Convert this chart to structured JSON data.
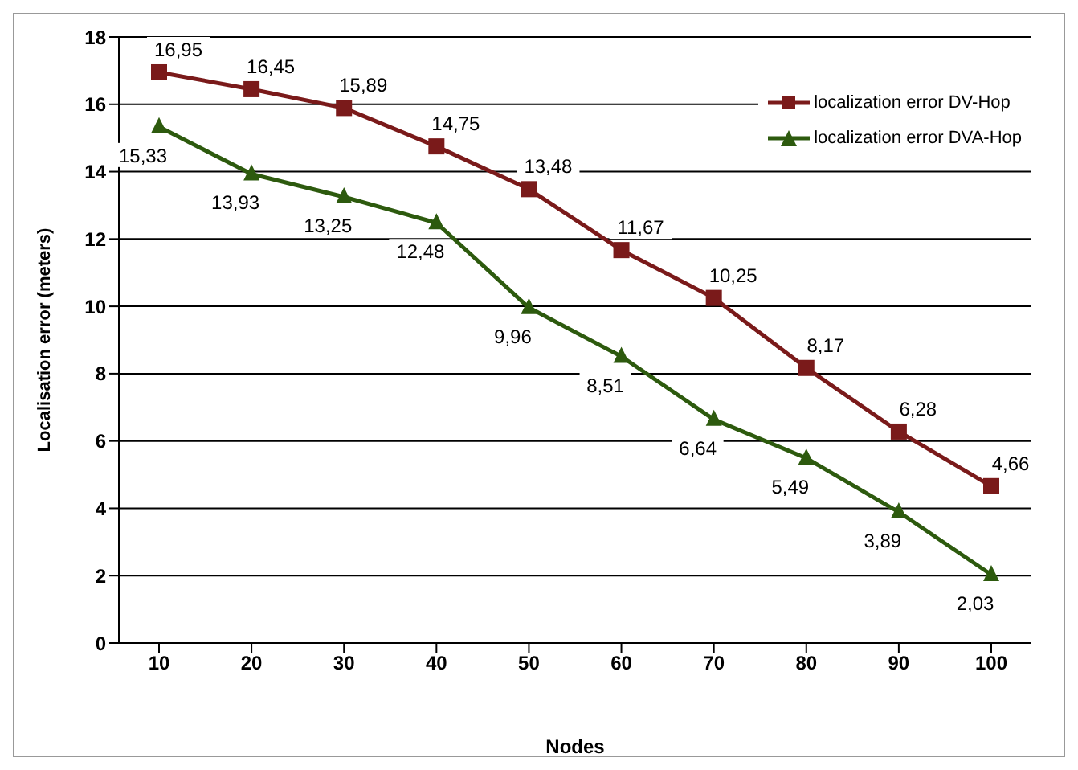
{
  "chart_data": {
    "type": "line",
    "xlabel": "Nodes",
    "ylabel": "Localisation error (meters)",
    "categories": [
      "10",
      "20",
      "30",
      "40",
      "50",
      "60",
      "70",
      "80",
      "90",
      "100"
    ],
    "ylim": [
      0,
      18
    ],
    "yticks": [
      0,
      2,
      4,
      6,
      8,
      10,
      12,
      14,
      16,
      18
    ],
    "grid": "y",
    "legend": "top right",
    "line_style": "solid",
    "series": [
      {
        "name": "localization error DV-Hop",
        "color": "#7a1a1a",
        "marker": "square",
        "values": [
          16.95,
          16.45,
          15.89,
          14.75,
          13.48,
          11.67,
          10.25,
          8.17,
          6.28,
          4.66
        ],
        "value_labels": [
          "16,95",
          "16,45",
          "15,89",
          "14,75",
          "13,48",
          "11,67",
          "10,25",
          "8,17",
          "6,28",
          "4,66"
        ]
      },
      {
        "name": "localization error DVA-Hop",
        "color": "#2d5a0e",
        "marker": "triangle",
        "values": [
          15.33,
          13.93,
          13.25,
          12.48,
          9.96,
          8.51,
          6.64,
          5.49,
          3.89,
          2.03
        ],
        "value_labels": [
          "15,33",
          "13,93",
          "13,25",
          "12,48",
          "9,96",
          "8,51",
          "6,64",
          "5,49",
          "3,89",
          "2,03"
        ]
      }
    ]
  }
}
